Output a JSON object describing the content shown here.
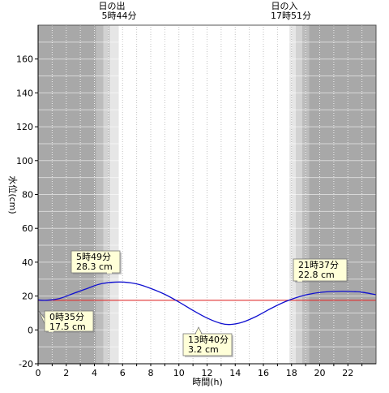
{
  "chart_data": {
    "type": "line",
    "xlabel": "時間(h)",
    "ylabel": "水位(cm)",
    "xlim": [
      0,
      24
    ],
    "ylim": [
      -20,
      180
    ],
    "x_ticks": [
      0,
      2,
      4,
      6,
      8,
      10,
      12,
      14,
      16,
      18,
      20,
      22
    ],
    "y_ticks": [
      -20,
      0,
      20,
      40,
      60,
      80,
      100,
      120,
      140,
      160
    ],
    "grid": true,
    "reference_line": {
      "y": 17.5,
      "color": "#e03030"
    },
    "sun_events": [
      {
        "line1": "日の出",
        "line2": "5時44分",
        "x": 5.733
      },
      {
        "line1": "日の入",
        "line2": "17時51分",
        "x": 17.85
      }
    ],
    "series": [
      {
        "color": "#1010d0",
        "x": [
          0,
          0.583,
          1.5,
          2.5,
          3.5,
          4.5,
          5.817,
          7,
          8,
          9,
          10,
          11,
          12,
          13,
          13.667,
          14.5,
          15.5,
          16.5,
          17.5,
          18.5,
          19.5,
          20.5,
          21.617,
          22.5,
          23,
          24
        ],
        "y": [
          17.7,
          17.5,
          18.5,
          21.5,
          24.5,
          27.3,
          28.3,
          27.2,
          24.5,
          21,
          16.5,
          11.5,
          7,
          3.8,
          3.2,
          4.5,
          8,
          12.5,
          16.5,
          19.5,
          21.5,
          22.5,
          22.8,
          22.6,
          22.3,
          20.8
        ]
      }
    ],
    "annotations": [
      {
        "line1": "0時35分",
        "line2": "17.5 cm",
        "x": 0.583,
        "y": 17.5
      },
      {
        "line1": "5時49分",
        "line2": "28.3 cm",
        "x": 5.817,
        "y": 28.3
      },
      {
        "line1": "13時40分",
        "line2": "3.2 cm",
        "x": 13.667,
        "y": 3.2
      },
      {
        "line1": "21時37分",
        "line2": "22.8 cm",
        "x": 21.617,
        "y": 22.8
      }
    ],
    "colors": {
      "night": "#a8a8a8",
      "twilight_dark": "#bcbcbc",
      "twilight_mid": "#d2d2d2",
      "twilight_light": "#e6e6e6",
      "day": "#ffffff",
      "callout_fill": "#ffffd8"
    }
  }
}
